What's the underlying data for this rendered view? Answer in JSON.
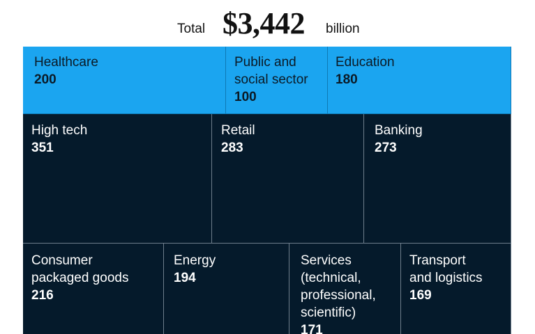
{
  "header": {
    "total_label": "Total",
    "total_value": "$3,442",
    "total_unit": "billion"
  },
  "colors": {
    "public_sector_tiles": "#1ba5f0",
    "private_sector_tiles": "#051a2b"
  },
  "chart_data": {
    "type": "treemap",
    "title": "",
    "total": 3442,
    "unit": "billion",
    "groups": [
      {
        "color": "#1ba5f0",
        "items": [
          {
            "name_lines": [
              "Healthcare"
            ],
            "value": 200
          },
          {
            "name_lines": [
              "Public and",
              "social sector"
            ],
            "value": 100
          },
          {
            "name_lines": [
              "Education"
            ],
            "value": 180
          }
        ]
      },
      {
        "color": "#051a2b",
        "items": [
          {
            "name_lines": [
              "High tech"
            ],
            "value": 351
          },
          {
            "name_lines": [
              "Retail"
            ],
            "value": 283
          },
          {
            "name_lines": [
              "Banking"
            ],
            "value": 273
          },
          {
            "name_lines": [
              "Consumer",
              "packaged goods"
            ],
            "value": 216
          },
          {
            "name_lines": [
              "Energy"
            ],
            "value": 194
          },
          {
            "name_lines": [
              "Services",
              "(technical,",
              "professional,",
              "scientific)"
            ],
            "value": 171
          },
          {
            "name_lines": [
              "Transport",
              "and logistics"
            ],
            "value": 169
          }
        ]
      }
    ]
  }
}
